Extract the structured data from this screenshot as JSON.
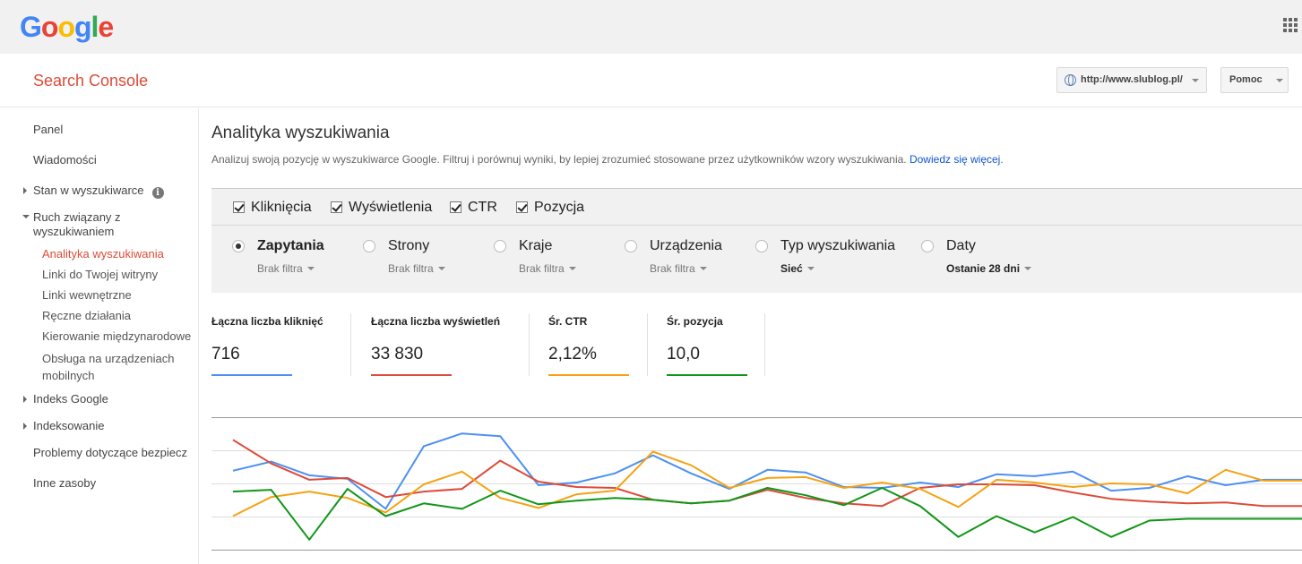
{
  "google_logo": "Google",
  "app_title": "Search Console",
  "header": {
    "site_url": "http://www.slublog.pl/",
    "help_label": "Pomoc"
  },
  "sidebar": {
    "items": [
      {
        "label": "Panel"
      },
      {
        "label": "Wiadomości"
      },
      {
        "label": "Stan w wyszukiwarce"
      },
      {
        "label_line1": "Ruch związany z",
        "label_line2": "wyszukiwaniem"
      },
      {
        "label": "Indeks Google"
      },
      {
        "label": "Indeksowanie"
      },
      {
        "label": "Problemy dotyczące bezpiecz"
      },
      {
        "label": "Inne zasoby"
      }
    ],
    "subitems": [
      {
        "label": "Analityka wyszukiwania"
      },
      {
        "label": "Linki do Twojej witryny"
      },
      {
        "label": "Linki wewnętrzne"
      },
      {
        "label": "Ręczne działania"
      },
      {
        "label": "Kierowanie międzynarodowe"
      },
      {
        "label_line1": "Obsługa na urządzeniach",
        "label_line2": "mobilnych"
      }
    ]
  },
  "page": {
    "title": "Analityka wyszukiwania",
    "description": "Analizuj swoją pozycję w wyszukiwarce Google. Filtruj i porównuj wyniki, by lepiej zrozumieć stosowane przez użytkowników wzory wyszukiwania.",
    "learn_more": "Dowiedz się więcej",
    "after_link": "."
  },
  "metrics": [
    "Kliknięcia",
    "Wyświetlenia",
    "CTR",
    "Pozycja"
  ],
  "groups": [
    {
      "label": "Zapytania",
      "filter": "Brak filtra"
    },
    {
      "label": "Strony",
      "filter": "Brak filtra"
    },
    {
      "label": "Kraje",
      "filter": "Brak filtra"
    },
    {
      "label": "Urządzenia",
      "filter": "Brak filtra"
    },
    {
      "label": "Typ wyszukiwania",
      "filter": "Sieć"
    },
    {
      "label": "Daty",
      "filter": "Ostanie 28 dni"
    }
  ],
  "totals": [
    {
      "label": "Łączna liczba kliknięć",
      "value": "716",
      "color": "#4d90f0"
    },
    {
      "label": "Łączna liczba wyświetleń",
      "value": "33 830",
      "color": "#dd4b39"
    },
    {
      "label": "Śr. CTR",
      "value": "2,12%",
      "color": "#f4a213"
    },
    {
      "label": "Śr. pozycja",
      "value": "10,0",
      "color": "#109618"
    }
  ],
  "chart_data": {
    "type": "line",
    "x": [
      1,
      2,
      3,
      4,
      5,
      6,
      7,
      8,
      9,
      10,
      11,
      12,
      13,
      14,
      15,
      16,
      17,
      18,
      19,
      20,
      21,
      22,
      23,
      24,
      25,
      26,
      27,
      28,
      29
    ],
    "grid": true,
    "series": [
      {
        "color": "#4d90f0",
        "values": [
          58,
          68,
          53,
          49,
          16,
          85,
          99,
          96,
          42,
          45,
          55,
          75,
          55,
          38,
          59,
          56,
          40,
          39,
          45,
          40,
          54,
          52,
          57,
          36,
          39,
          52,
          42,
          48,
          48
        ]
      },
      {
        "color": "#dd4b39",
        "values": [
          92,
          66,
          48,
          50,
          29,
          35,
          38,
          69,
          46,
          40,
          39,
          26,
          22,
          25,
          37,
          28,
          22,
          19,
          39,
          43,
          43,
          42,
          34,
          27,
          24,
          22,
          23,
          19,
          19
        ]
      },
      {
        "color": "#f4a213",
        "values": [
          8,
          29,
          35,
          28,
          12,
          43,
          57,
          28,
          17,
          32,
          36,
          79,
          64,
          39,
          50,
          51,
          39,
          45,
          38,
          18,
          48,
          45,
          40,
          44,
          43,
          33,
          59,
          47,
          47
        ]
      },
      {
        "color": "#109618",
        "values": [
          35,
          37,
          -18,
          38,
          8,
          22,
          16,
          36,
          21,
          25,
          28,
          26,
          22,
          25,
          39,
          31,
          20,
          39,
          19,
          -15,
          8,
          -10,
          7,
          -15,
          3,
          5,
          5,
          5,
          5
        ]
      }
    ]
  }
}
